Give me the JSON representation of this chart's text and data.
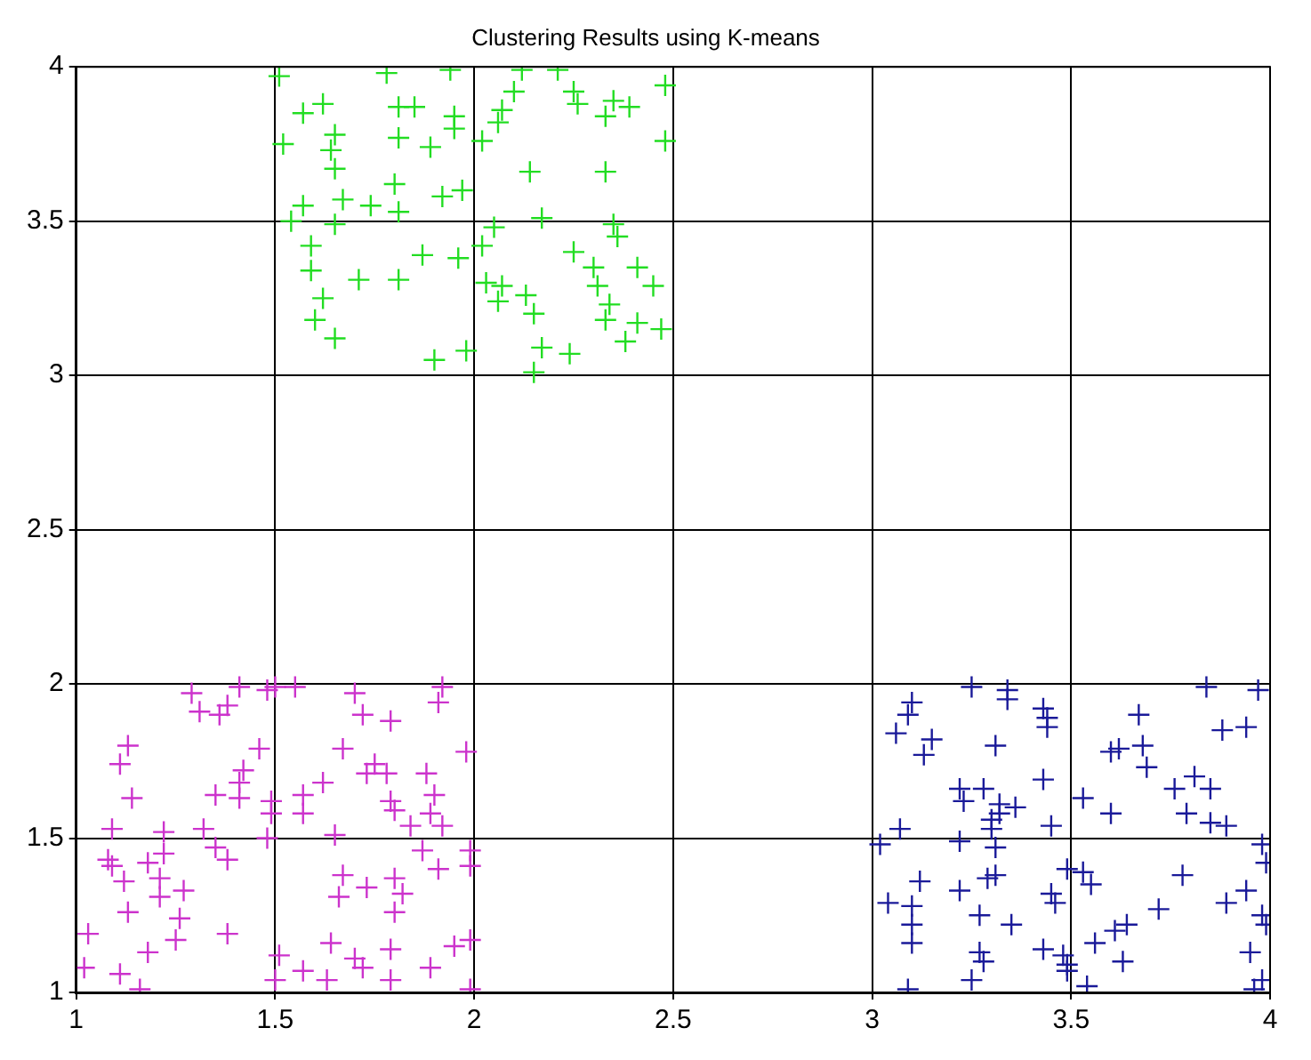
{
  "chart_data": {
    "type": "scatter",
    "title": "Clustering Results using K-means",
    "xlim": [
      1,
      4
    ],
    "ylim": [
      1,
      4
    ],
    "xticks": [
      1,
      1.5,
      2,
      2.5,
      3,
      3.5,
      4
    ],
    "yticks": [
      1,
      1.5,
      2,
      2.5,
      3,
      3.5,
      4
    ],
    "grid": true,
    "marker": "cross",
    "series": [
      {
        "color": "#22dd22",
        "x": [
          1.51,
          1.78,
          1.94,
          2.12,
          2.21,
          2.48,
          2.1,
          2.25,
          2.35,
          2.39,
          1.57,
          1.62,
          1.81,
          1.85,
          1.95,
          1.95,
          2.07,
          2.06,
          2.26,
          2.33,
          1.52,
          1.65,
          1.64,
          1.81,
          1.89,
          2.02,
          2.48,
          1.65,
          2.14,
          2.33,
          1.8,
          1.92,
          1.97,
          1.57,
          1.67,
          1.74,
          1.81,
          1.54,
          1.65,
          2.17,
          2.05,
          2.35,
          2.36,
          1.59,
          1.59,
          1.71,
          1.81,
          1.87,
          1.96,
          2.02,
          2.03,
          2.07,
          2.25,
          2.3,
          2.41,
          2.45,
          1.62,
          2.13,
          2.31,
          2.34,
          2.06,
          2.15,
          1.6,
          1.65,
          2.33,
          2.41,
          2.47,
          2.38,
          2.17,
          2.24,
          1.98,
          1.9,
          2.15
        ],
        "values": [
          3.97,
          3.98,
          3.99,
          3.99,
          3.99,
          3.94,
          3.92,
          3.92,
          3.89,
          3.87,
          3.85,
          3.88,
          3.87,
          3.87,
          3.84,
          3.8,
          3.86,
          3.82,
          3.88,
          3.84,
          3.75,
          3.78,
          3.73,
          3.77,
          3.74,
          3.76,
          3.76,
          3.67,
          3.66,
          3.66,
          3.62,
          3.58,
          3.6,
          3.55,
          3.57,
          3.55,
          3.53,
          3.5,
          3.49,
          3.51,
          3.48,
          3.49,
          3.45,
          3.42,
          3.34,
          3.31,
          3.31,
          3.39,
          3.38,
          3.42,
          3.3,
          3.29,
          3.4,
          3.35,
          3.35,
          3.29,
          3.25,
          3.26,
          3.29,
          3.23,
          3.24,
          3.2,
          3.18,
          3.12,
          3.18,
          3.17,
          3.15,
          3.11,
          3.09,
          3.07,
          3.08,
          3.05,
          3.01
        ]
      },
      {
        "color": "#cc33cc",
        "x": [
          1.29,
          1.41,
          1.48,
          1.5,
          1.55,
          1.7,
          1.92,
          1.91,
          1.31,
          1.36,
          1.38,
          1.72,
          1.79,
          1.13,
          1.11,
          1.46,
          1.67,
          1.98,
          1.42,
          1.41,
          1.75,
          1.78,
          1.73,
          1.88,
          1.14,
          1.35,
          1.41,
          1.49,
          1.49,
          1.57,
          1.62,
          1.57,
          1.79,
          1.8,
          1.9,
          1.89,
          1.84,
          1.92,
          1.09,
          1.32,
          1.22,
          1.48,
          1.65,
          1.35,
          1.38,
          1.08,
          1.09,
          1.18,
          1.22,
          1.21,
          1.12,
          1.21,
          1.27,
          1.13,
          1.26,
          1.25,
          1.38,
          1.03,
          1.18,
          1.02,
          1.11,
          1.16,
          1.87,
          1.91,
          1.99,
          1.99,
          1.67,
          1.73,
          1.8,
          1.82,
          1.66,
          1.8,
          1.64,
          1.7,
          1.72,
          1.79,
          1.89,
          1.95,
          1.99,
          1.51,
          1.5,
          1.57,
          1.63,
          1.79,
          1.99
        ],
        "values": [
          1.97,
          1.99,
          1.98,
          1.99,
          1.99,
          1.97,
          1.99,
          1.94,
          1.91,
          1.9,
          1.93,
          1.9,
          1.88,
          1.8,
          1.74,
          1.79,
          1.79,
          1.78,
          1.72,
          1.68,
          1.74,
          1.71,
          1.71,
          1.71,
          1.63,
          1.64,
          1.63,
          1.62,
          1.58,
          1.64,
          1.68,
          1.58,
          1.62,
          1.59,
          1.64,
          1.58,
          1.54,
          1.54,
          1.53,
          1.53,
          1.52,
          1.5,
          1.51,
          1.47,
          1.43,
          1.43,
          1.41,
          1.42,
          1.45,
          1.37,
          1.36,
          1.31,
          1.33,
          1.26,
          1.24,
          1.17,
          1.19,
          1.19,
          1.13,
          1.08,
          1.06,
          1.01,
          1.46,
          1.4,
          1.46,
          1.41,
          1.38,
          1.34,
          1.37,
          1.32,
          1.31,
          1.26,
          1.16,
          1.11,
          1.08,
          1.14,
          1.08,
          1.15,
          1.17,
          1.12,
          1.04,
          1.07,
          1.04,
          1.04,
          1.01
        ]
      },
      {
        "color": "#1a1a99",
        "x": [
          3.25,
          3.34,
          3.34,
          3.43,
          3.44,
          3.44,
          3.84,
          3.97,
          3.1,
          3.09,
          3.06,
          3.15,
          3.13,
          3.31,
          3.67,
          3.68,
          3.6,
          3.62,
          3.69,
          3.88,
          3.94,
          3.43,
          3.22,
          3.23,
          3.28,
          3.32,
          3.32,
          3.36,
          3.3,
          3.3,
          3.45,
          3.53,
          3.6,
          3.76,
          3.81,
          3.85,
          3.79,
          3.85,
          3.89,
          3.07,
          3.02,
          3.22,
          3.31,
          3.98,
          3.99,
          3.12,
          3.22,
          3.29,
          3.31,
          3.45,
          3.46,
          3.49,
          3.53,
          3.55,
          3.78,
          3.72,
          3.94,
          3.89,
          3.98,
          3.99,
          3.04,
          3.1,
          3.1,
          3.1,
          3.27,
          3.35,
          3.27,
          3.28,
          3.25,
          3.43,
          3.48,
          3.49,
          3.49,
          3.56,
          3.61,
          3.64,
          3.63,
          3.95,
          3.09,
          3.54,
          3.96,
          3.98
        ],
        "values": [
          1.99,
          1.98,
          1.95,
          1.92,
          1.89,
          1.86,
          1.99,
          1.98,
          1.94,
          1.9,
          1.84,
          1.82,
          1.77,
          1.8,
          1.9,
          1.8,
          1.78,
          1.79,
          1.73,
          1.85,
          1.86,
          1.69,
          1.66,
          1.62,
          1.66,
          1.61,
          1.58,
          1.6,
          1.56,
          1.53,
          1.54,
          1.63,
          1.58,
          1.66,
          1.7,
          1.66,
          1.58,
          1.55,
          1.54,
          1.53,
          1.48,
          1.49,
          1.47,
          1.48,
          1.42,
          1.36,
          1.33,
          1.37,
          1.38,
          1.32,
          1.29,
          1.4,
          1.39,
          1.35,
          1.38,
          1.27,
          1.33,
          1.29,
          1.25,
          1.22,
          1.29,
          1.28,
          1.22,
          1.16,
          1.25,
          1.22,
          1.13,
          1.1,
          1.04,
          1.14,
          1.12,
          1.09,
          1.07,
          1.16,
          1.2,
          1.22,
          1.1,
          1.13,
          1.01,
          1.02,
          1.01,
          1.04
        ]
      }
    ]
  }
}
